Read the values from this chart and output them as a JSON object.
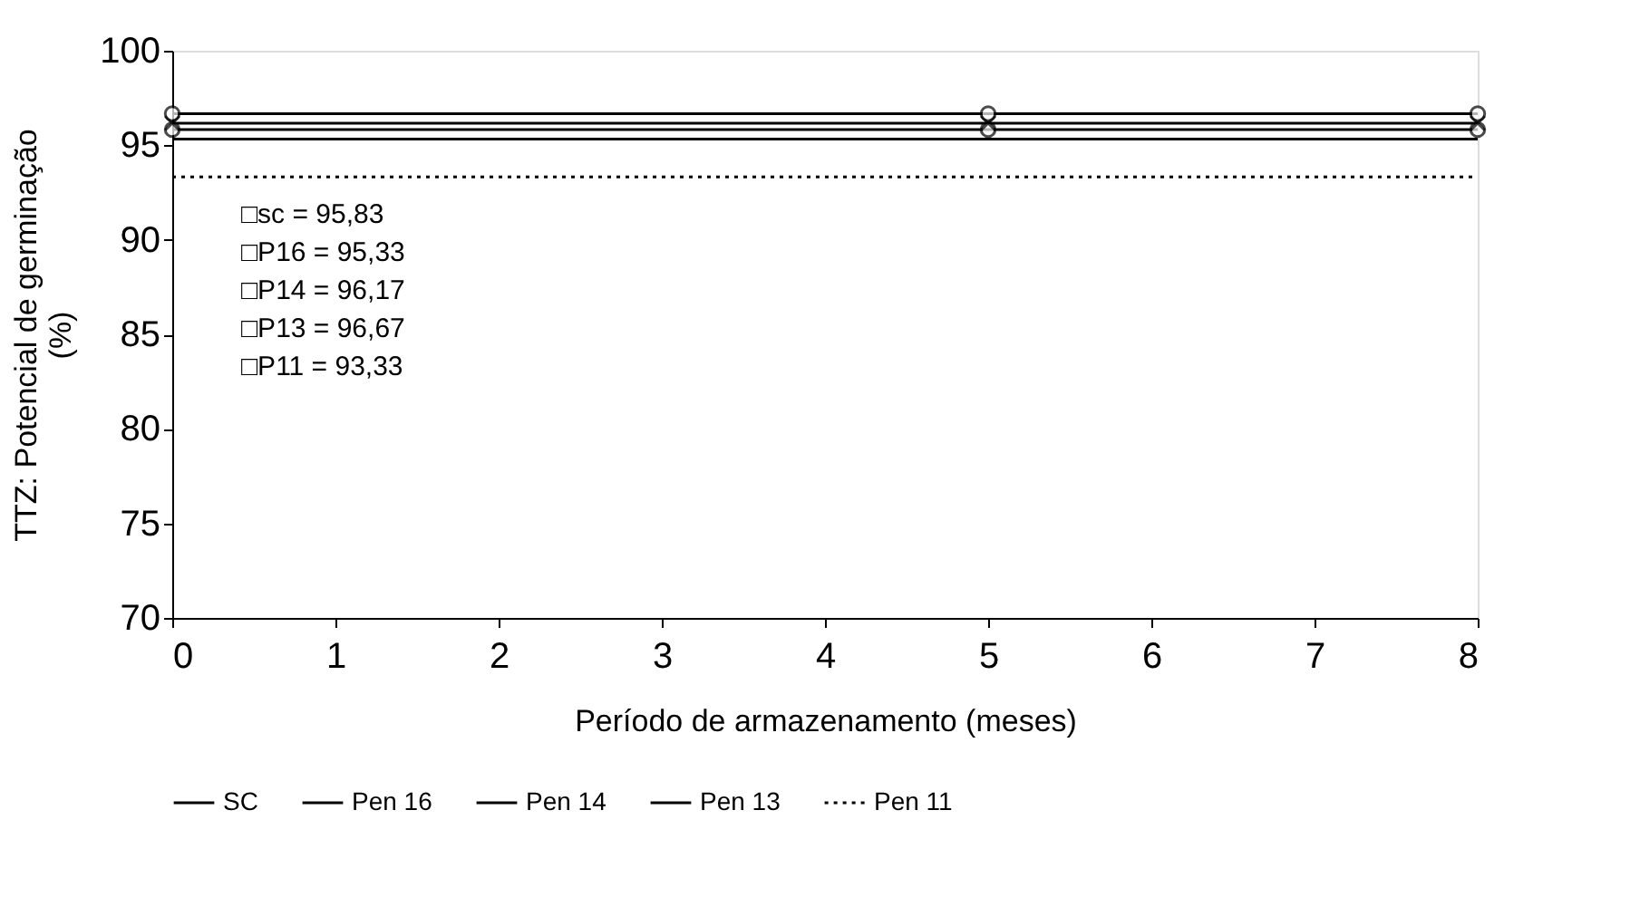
{
  "chart_data": {
    "type": "line",
    "xlabel": "Período de armazenamento (meses)",
    "ylabel": "TTZ: Potencial de germinação (%)",
    "x": [
      0,
      5,
      8
    ],
    "xlim": [
      0,
      8
    ],
    "xticks": [
      0,
      1,
      2,
      3,
      4,
      5,
      6,
      7,
      8
    ],
    "ylim": [
      70,
      100
    ],
    "yticks": [
      70,
      75,
      80,
      85,
      90,
      95,
      100
    ],
    "grid": false,
    "legend": "bottom",
    "series": [
      {
        "name": "SC",
        "color": "#000000",
        "values": [
          95.83,
          95.83,
          95.83
        ],
        "marker": "circle",
        "line_style": "solid"
      },
      {
        "name": "Pen 16",
        "color": "#000000",
        "values": [
          95.33,
          95.33,
          95.33
        ],
        "marker": "none",
        "line_style": "solid"
      },
      {
        "name": "Pen 14",
        "color": "#000000",
        "values": [
          96.17,
          96.17,
          96.17
        ],
        "marker": "cross",
        "line_style": "solid"
      },
      {
        "name": "Pen 13",
        "color": "#000000",
        "values": [
          96.67,
          96.67,
          96.67
        ],
        "marker": "circle",
        "line_style": "solid"
      },
      {
        "name": "Pen 11",
        "color": "#000000",
        "values": [
          93.33,
          93.33,
          93.33
        ],
        "marker": "none",
        "line_style": "dotted"
      }
    ],
    "annotations": [
      "□sc = 95,83",
      "□P16 = 95,33",
      "□P14 = 96,17",
      "□P13 = 96,67",
      "□P11 = 93,33"
    ]
  }
}
